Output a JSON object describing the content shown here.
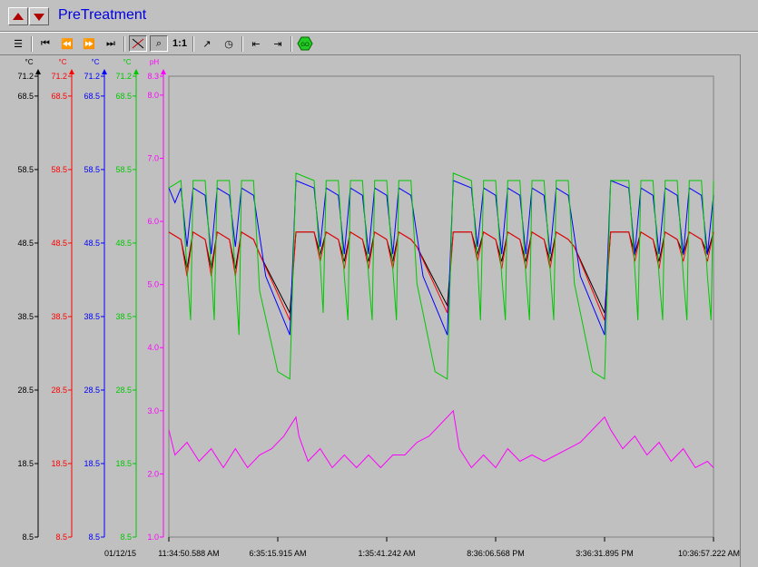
{
  "window": {
    "title": "PreTreatment"
  },
  "toolbar": {
    "one_to_one_label": "1:1",
    "tools": [
      {
        "name": "properties-icon",
        "glyph": "☰"
      },
      {
        "name": "first-icon",
        "glyph": "⏮"
      },
      {
        "name": "rewind-icon",
        "glyph": "⏪"
      },
      {
        "name": "forward-icon",
        "glyph": "⏩"
      },
      {
        "name": "last-icon",
        "glyph": "⏭"
      },
      {
        "name": "zoom-tool-icon",
        "glyph": "⌕"
      },
      {
        "name": "trend-icon",
        "glyph": "↗"
      },
      {
        "name": "timer-icon",
        "glyph": "◷"
      },
      {
        "name": "scroll-left-icon",
        "glyph": "⇤"
      },
      {
        "name": "scroll-right-icon",
        "glyph": "⇥"
      },
      {
        "name": "go-icon",
        "glyph": "GO"
      }
    ]
  },
  "chart_data": {
    "type": "line",
    "date_label": "01/12/15",
    "x_tick_labels": [
      "11:34:50.588 AM",
      "6:35:15.915 AM",
      "1:35:41.242 AM",
      "8:36:06.568 PM",
      "3:36:31.895 PM",
      "10:36:57.222 AM"
    ],
    "axes": [
      {
        "unit": "°C",
        "color": "#000000",
        "ticks": [
          "71.2",
          "68.5",
          "58.5",
          "48.5",
          "38.5",
          "28.5",
          "18.5",
          "8.5"
        ],
        "ylim": [
          8.5,
          71.2
        ]
      },
      {
        "unit": "°C",
        "color": "#ff0000",
        "ticks": [
          "71.2",
          "68.5",
          "58.5",
          "48.5",
          "38.5",
          "28.5",
          "18.5",
          "8.5"
        ],
        "ylim": [
          8.5,
          71.2
        ]
      },
      {
        "unit": "°C",
        "color": "#0000ff",
        "ticks": [
          "71.2",
          "68.5",
          "58.5",
          "48.5",
          "38.5",
          "28.5",
          "18.5",
          "8.5"
        ],
        "ylim": [
          8.5,
          71.2
        ]
      },
      {
        "unit": "°C",
        "color": "#00c800",
        "ticks": [
          "71.2",
          "68.5",
          "58.5",
          "48.5",
          "38.5",
          "28.5",
          "18.5",
          "8.5"
        ],
        "ylim": [
          8.5,
          71.2
        ]
      },
      {
        "unit": "pH",
        "color": "#ff00ff",
        "ticks": [
          "8.3",
          "8.0",
          "7.0",
          "6.0",
          "5.0",
          "4.0",
          "3.0",
          "2.0",
          "1.0"
        ],
        "ylim": [
          1.0,
          8.3
        ]
      }
    ],
    "grid": false,
    "series": [
      {
        "color": "#000000",
        "axis": 0,
        "points": [
          [
            0,
            50
          ],
          [
            2,
            49
          ],
          [
            3,
            45
          ],
          [
            4,
            50
          ],
          [
            6,
            49
          ],
          [
            7,
            45
          ],
          [
            8,
            50
          ],
          [
            10,
            49
          ],
          [
            11,
            45
          ],
          [
            12,
            50
          ],
          [
            14,
            49
          ],
          [
            15,
            47
          ],
          [
            20,
            39
          ],
          [
            21,
            50
          ],
          [
            24,
            50
          ],
          [
            25,
            47
          ],
          [
            26,
            50
          ],
          [
            28,
            49
          ],
          [
            29,
            46
          ],
          [
            30,
            50
          ],
          [
            32,
            49
          ],
          [
            33,
            46
          ],
          [
            34,
            50
          ],
          [
            36,
            49
          ],
          [
            37,
            46
          ],
          [
            38,
            50
          ],
          [
            40,
            49
          ],
          [
            41,
            48
          ],
          [
            46,
            40
          ],
          [
            47,
            50
          ],
          [
            50,
            50
          ],
          [
            51,
            47
          ],
          [
            52,
            50
          ],
          [
            54,
            49
          ],
          [
            55,
            46
          ],
          [
            56,
            50
          ],
          [
            58,
            49
          ],
          [
            59,
            46
          ],
          [
            60,
            50
          ],
          [
            62,
            49
          ],
          [
            63,
            46
          ],
          [
            64,
            50
          ],
          [
            66,
            49
          ],
          [
            67,
            48
          ],
          [
            72,
            39
          ],
          [
            73,
            50
          ],
          [
            76,
            50
          ],
          [
            77,
            47
          ],
          [
            78,
            50
          ],
          [
            80,
            49
          ],
          [
            81,
            46
          ],
          [
            82,
            50
          ],
          [
            84,
            49
          ],
          [
            85,
            47
          ],
          [
            86,
            50
          ],
          [
            88,
            49
          ],
          [
            89,
            47
          ],
          [
            90,
            50
          ]
        ]
      },
      {
        "color": "#ff0000",
        "axis": 1,
        "points": [
          [
            0,
            50
          ],
          [
            2,
            49
          ],
          [
            3,
            44
          ],
          [
            4,
            50
          ],
          [
            6,
            49
          ],
          [
            7,
            44
          ],
          [
            8,
            50
          ],
          [
            10,
            49
          ],
          [
            11,
            44
          ],
          [
            12,
            50
          ],
          [
            14,
            49
          ],
          [
            15,
            47
          ],
          [
            20,
            38
          ],
          [
            21,
            50
          ],
          [
            24,
            50
          ],
          [
            25,
            46
          ],
          [
            26,
            50
          ],
          [
            28,
            49
          ],
          [
            29,
            45
          ],
          [
            30,
            50
          ],
          [
            32,
            49
          ],
          [
            33,
            45
          ],
          [
            34,
            50
          ],
          [
            36,
            49
          ],
          [
            37,
            45
          ],
          [
            38,
            50
          ],
          [
            40,
            49
          ],
          [
            41,
            48
          ],
          [
            46,
            39
          ],
          [
            47,
            50
          ],
          [
            50,
            50
          ],
          [
            51,
            46
          ],
          [
            52,
            50
          ],
          [
            54,
            49
          ],
          [
            55,
            45
          ],
          [
            56,
            50
          ],
          [
            58,
            49
          ],
          [
            59,
            45
          ],
          [
            60,
            50
          ],
          [
            62,
            49
          ],
          [
            63,
            45
          ],
          [
            64,
            50
          ],
          [
            66,
            49
          ],
          [
            67,
            48
          ],
          [
            72,
            38
          ],
          [
            73,
            50
          ],
          [
            76,
            50
          ],
          [
            77,
            46
          ],
          [
            78,
            50
          ],
          [
            80,
            49
          ],
          [
            81,
            45
          ],
          [
            82,
            50
          ],
          [
            84,
            49
          ],
          [
            85,
            46
          ],
          [
            86,
            50
          ],
          [
            88,
            49
          ],
          [
            89,
            46
          ],
          [
            90,
            50
          ]
        ]
      },
      {
        "color": "#0000ff",
        "axis": 2,
        "points": [
          [
            0,
            56
          ],
          [
            1,
            54
          ],
          [
            2,
            56
          ],
          [
            3,
            48
          ],
          [
            4,
            56
          ],
          [
            6,
            55
          ],
          [
            7,
            47
          ],
          [
            8,
            56
          ],
          [
            10,
            55
          ],
          [
            11,
            48
          ],
          [
            12,
            56
          ],
          [
            14,
            55
          ],
          [
            16,
            44
          ],
          [
            20,
            36
          ],
          [
            21,
            57
          ],
          [
            24,
            56
          ],
          [
            25,
            48
          ],
          [
            26,
            56
          ],
          [
            28,
            55
          ],
          [
            29,
            47
          ],
          [
            30,
            56
          ],
          [
            32,
            55
          ],
          [
            33,
            47
          ],
          [
            34,
            56
          ],
          [
            36,
            55
          ],
          [
            37,
            47
          ],
          [
            38,
            56
          ],
          [
            40,
            55
          ],
          [
            42,
            44
          ],
          [
            46,
            36
          ],
          [
            47,
            57
          ],
          [
            50,
            56
          ],
          [
            51,
            48
          ],
          [
            52,
            56
          ],
          [
            54,
            55
          ],
          [
            55,
            47
          ],
          [
            56,
            56
          ],
          [
            58,
            55
          ],
          [
            59,
            47
          ],
          [
            60,
            56
          ],
          [
            62,
            55
          ],
          [
            63,
            47
          ],
          [
            64,
            56
          ],
          [
            66,
            55
          ],
          [
            68,
            44
          ],
          [
            72,
            36
          ],
          [
            73,
            57
          ],
          [
            76,
            56
          ],
          [
            77,
            47
          ],
          [
            78,
            56
          ],
          [
            80,
            55
          ],
          [
            81,
            47
          ],
          [
            82,
            56
          ],
          [
            84,
            55
          ],
          [
            85,
            47
          ],
          [
            86,
            56
          ],
          [
            88,
            55
          ],
          [
            89,
            47
          ],
          [
            90,
            55
          ]
        ]
      },
      {
        "color": "#00c800",
        "axis": 3,
        "points": [
          [
            0,
            56
          ],
          [
            2,
            57
          ],
          [
            3,
            45
          ],
          [
            3.6,
            38
          ],
          [
            4,
            57
          ],
          [
            6,
            57
          ],
          [
            7,
            45
          ],
          [
            7.5,
            38
          ],
          [
            8,
            57
          ],
          [
            10,
            57
          ],
          [
            11,
            44
          ],
          [
            11.6,
            36
          ],
          [
            12,
            57
          ],
          [
            14,
            57
          ],
          [
            15,
            42
          ],
          [
            18,
            31
          ],
          [
            20,
            30
          ],
          [
            21,
            58
          ],
          [
            24,
            57
          ],
          [
            25,
            46
          ],
          [
            25.5,
            39
          ],
          [
            26,
            57
          ],
          [
            28,
            57
          ],
          [
            29,
            44
          ],
          [
            29.6,
            38
          ],
          [
            30,
            57
          ],
          [
            32,
            57
          ],
          [
            33,
            44
          ],
          [
            33.6,
            38
          ],
          [
            34,
            57
          ],
          [
            36,
            57
          ],
          [
            37,
            45
          ],
          [
            37.6,
            38
          ],
          [
            38,
            57
          ],
          [
            40,
            57
          ],
          [
            41,
            43
          ],
          [
            44,
            31
          ],
          [
            46,
            30
          ],
          [
            47,
            58
          ],
          [
            50,
            57
          ],
          [
            51,
            46
          ],
          [
            51.5,
            38
          ],
          [
            52,
            57
          ],
          [
            54,
            57
          ],
          [
            55,
            44
          ],
          [
            55.6,
            38
          ],
          [
            56,
            57
          ],
          [
            58,
            57
          ],
          [
            59,
            44
          ],
          [
            59.6,
            38
          ],
          [
            60,
            57
          ],
          [
            62,
            57
          ],
          [
            63,
            45
          ],
          [
            63.6,
            38
          ],
          [
            64,
            57
          ],
          [
            66,
            57
          ],
          [
            67,
            43
          ],
          [
            70,
            31
          ],
          [
            72,
            30
          ],
          [
            73,
            57
          ],
          [
            76,
            57
          ],
          [
            77,
            45
          ],
          [
            77.5,
            38
          ],
          [
            78,
            57
          ],
          [
            80,
            57
          ],
          [
            81,
            44
          ],
          [
            81.6,
            38
          ],
          [
            82,
            57
          ],
          [
            84,
            57
          ],
          [
            85,
            44
          ],
          [
            85.6,
            38
          ],
          [
            86,
            57
          ],
          [
            88,
            57
          ],
          [
            89,
            44
          ],
          [
            89.6,
            38
          ],
          [
            90,
            57
          ]
        ]
      },
      {
        "color": "#ff00ff",
        "axis": 4,
        "points": [
          [
            0,
            2.7
          ],
          [
            1,
            2.3
          ],
          [
            3,
            2.5
          ],
          [
            5,
            2.2
          ],
          [
            7,
            2.4
          ],
          [
            9,
            2.1
          ],
          [
            11,
            2.4
          ],
          [
            13,
            2.1
          ],
          [
            15,
            2.3
          ],
          [
            17,
            2.4
          ],
          [
            19,
            2.6
          ],
          [
            21,
            2.9
          ],
          [
            21.5,
            2.6
          ],
          [
            23,
            2.2
          ],
          [
            25,
            2.4
          ],
          [
            27,
            2.1
          ],
          [
            29,
            2.3
          ],
          [
            31,
            2.1
          ],
          [
            33,
            2.3
          ],
          [
            35,
            2.1
          ],
          [
            37,
            2.3
          ],
          [
            39,
            2.3
          ],
          [
            41,
            2.5
          ],
          [
            43,
            2.6
          ],
          [
            47,
            3.0
          ],
          [
            48,
            2.4
          ],
          [
            50,
            2.1
          ],
          [
            52,
            2.3
          ],
          [
            54,
            2.1
          ],
          [
            56,
            2.4
          ],
          [
            58,
            2.2
          ],
          [
            60,
            2.3
          ],
          [
            62,
            2.2
          ],
          [
            64,
            2.3
          ],
          [
            66,
            2.4
          ],
          [
            68,
            2.5
          ],
          [
            72,
            2.9
          ],
          [
            73,
            2.7
          ],
          [
            75,
            2.4
          ],
          [
            77,
            2.6
          ],
          [
            79,
            2.3
          ],
          [
            81,
            2.5
          ],
          [
            83,
            2.2
          ],
          [
            85,
            2.4
          ],
          [
            87,
            2.1
          ],
          [
            89,
            2.2
          ],
          [
            90,
            2.1
          ]
        ]
      }
    ],
    "x_range": [
      0,
      90
    ]
  }
}
